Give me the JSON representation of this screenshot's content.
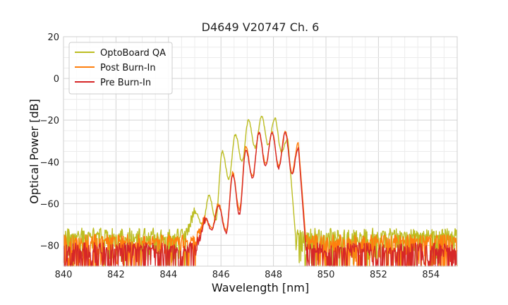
{
  "chart_data": {
    "type": "line",
    "title": "D4649 V20747 Ch. 6",
    "xlabel": "Wavelength [nm]",
    "ylabel": "Optical Power [dB]",
    "xlim": [
      840,
      855
    ],
    "ylim": [
      -90,
      20
    ],
    "xticks": [
      840,
      842,
      844,
      846,
      848,
      850,
      852,
      854
    ],
    "yticks": [
      -80,
      -60,
      -40,
      -20,
      0,
      20
    ],
    "ytick_labels": [
      "−80",
      "−60",
      "−40",
      "−20",
      "0",
      "20"
    ],
    "grid": true,
    "legend_position": "top-left",
    "series": [
      {
        "name": "OptoBoard QA",
        "color": "#bcbd22",
        "noise_floor": -75,
        "peaks": [
          {
            "x": 845.0,
            "y": -64
          },
          {
            "x": 845.55,
            "y": -56
          },
          {
            "x": 846.05,
            "y": -35
          },
          {
            "x": 846.55,
            "y": -27
          },
          {
            "x": 847.05,
            "y": -20
          },
          {
            "x": 847.55,
            "y": -18
          },
          {
            "x": 848.05,
            "y": -19
          },
          {
            "x": 848.55,
            "y": -29
          }
        ],
        "troughs": [
          {
            "x": 845.3,
            "y": -70
          },
          {
            "x": 845.8,
            "y": -68
          },
          {
            "x": 846.3,
            "y": -48
          },
          {
            "x": 846.8,
            "y": -40
          },
          {
            "x": 847.3,
            "y": -33
          },
          {
            "x": 847.8,
            "y": -32
          },
          {
            "x": 848.3,
            "y": -35
          }
        ],
        "edge_fall_x": 848.85
      },
      {
        "name": "Post Burn-In",
        "color": "#ff7f0e",
        "noise_floor": -78,
        "peaks": [
          {
            "x": 845.4,
            "y": -67
          },
          {
            "x": 845.9,
            "y": -60
          },
          {
            "x": 846.45,
            "y": -45
          },
          {
            "x": 846.95,
            "y": -33
          },
          {
            "x": 847.45,
            "y": -26
          },
          {
            "x": 847.95,
            "y": -26
          },
          {
            "x": 848.45,
            "y": -25
          },
          {
            "x": 848.95,
            "y": -31
          }
        ],
        "troughs": [
          {
            "x": 845.65,
            "y": -72
          },
          {
            "x": 846.2,
            "y": -73
          },
          {
            "x": 846.7,
            "y": -63
          },
          {
            "x": 847.2,
            "y": -47
          },
          {
            "x": 847.7,
            "y": -41
          },
          {
            "x": 848.2,
            "y": -42
          },
          {
            "x": 848.7,
            "y": -45
          }
        ],
        "edge_fall_x": 849.25
      },
      {
        "name": "Pre Burn-In",
        "color": "#d62728",
        "noise_floor": -82,
        "peaks": [
          {
            "x": 845.4,
            "y": -67
          },
          {
            "x": 845.9,
            "y": -61
          },
          {
            "x": 846.45,
            "y": -46
          },
          {
            "x": 846.95,
            "y": -34
          },
          {
            "x": 847.45,
            "y": -26
          },
          {
            "x": 847.95,
            "y": -26
          },
          {
            "x": 848.45,
            "y": -26
          },
          {
            "x": 848.95,
            "y": -33
          }
        ],
        "troughs": [
          {
            "x": 845.65,
            "y": -73
          },
          {
            "x": 846.2,
            "y": -74
          },
          {
            "x": 846.7,
            "y": -65
          },
          {
            "x": 847.2,
            "y": -48
          },
          {
            "x": 847.7,
            "y": -42
          },
          {
            "x": 848.2,
            "y": -43
          },
          {
            "x": 848.7,
            "y": -46
          }
        ],
        "edge_fall_x": 849.25
      }
    ]
  }
}
